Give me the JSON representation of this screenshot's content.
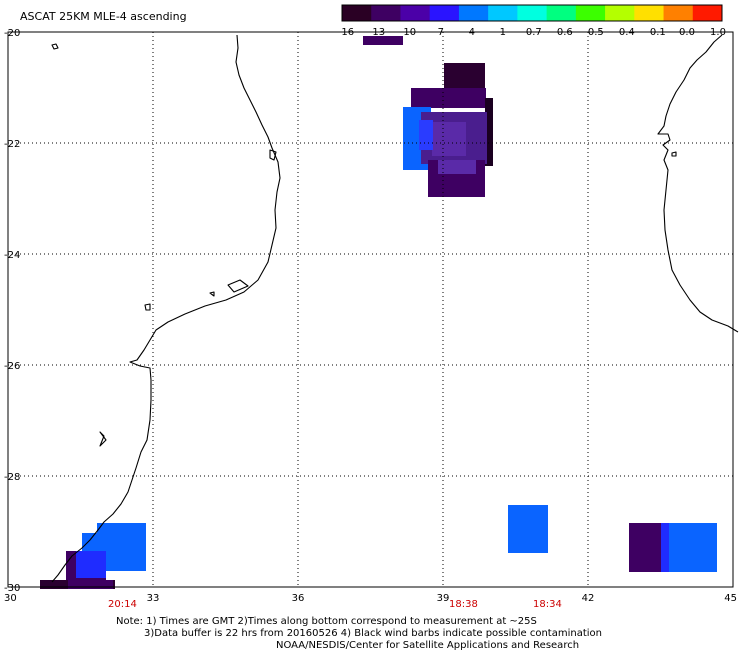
{
  "title": "ASCAT 25KM MLE-4 ascending",
  "colorbar": {
    "labels": [
      "-16",
      "-13",
      "-10",
      "-7",
      "-4",
      "-1",
      "-0.7",
      "-0.6",
      "-0.5",
      "-0.4",
      "-0.1",
      "0.0",
      "1.0"
    ],
    "colors": [
      "#2a0024",
      "#3e0062",
      "#4b00a8",
      "#2a14ff",
      "#0078ff",
      "#00c8ff",
      "#00ffe0",
      "#00ff80",
      "#3cff00",
      "#b4ff00",
      "#ffe000",
      "#ff8000",
      "#ff1a00"
    ]
  },
  "map": {
    "lon_range": [
      30,
      45
    ],
    "lat_range": [
      -30,
      -20
    ],
    "x_ticks": [
      "30",
      "33",
      "36",
      "39",
      "42",
      "45"
    ],
    "y_ticks": [
      "-20",
      "-22",
      "-24",
      "-26",
      "-28",
      "-30"
    ],
    "pass_times": [
      "20:14",
      "18:38",
      "18:34"
    ]
  },
  "notes": {
    "line1": "Note: 1) Times are GMT 2)Times along bottom correspond to measurement at ~25S",
    "line2": "3)Data buffer is 22 hrs from 20160526 4) Black wind barbs indicate possible contamination",
    "line3": "NOAA/NESDIS/Center for Satellite Applications and Research"
  },
  "colors": {
    "background": "#ffffff",
    "time_label": "#cc0000",
    "purple_dark": "#2a0030",
    "purple": "#3e0062",
    "violet": "#5a1ea0",
    "blue": "#1f3cff",
    "light_blue": "#0a64ff"
  }
}
